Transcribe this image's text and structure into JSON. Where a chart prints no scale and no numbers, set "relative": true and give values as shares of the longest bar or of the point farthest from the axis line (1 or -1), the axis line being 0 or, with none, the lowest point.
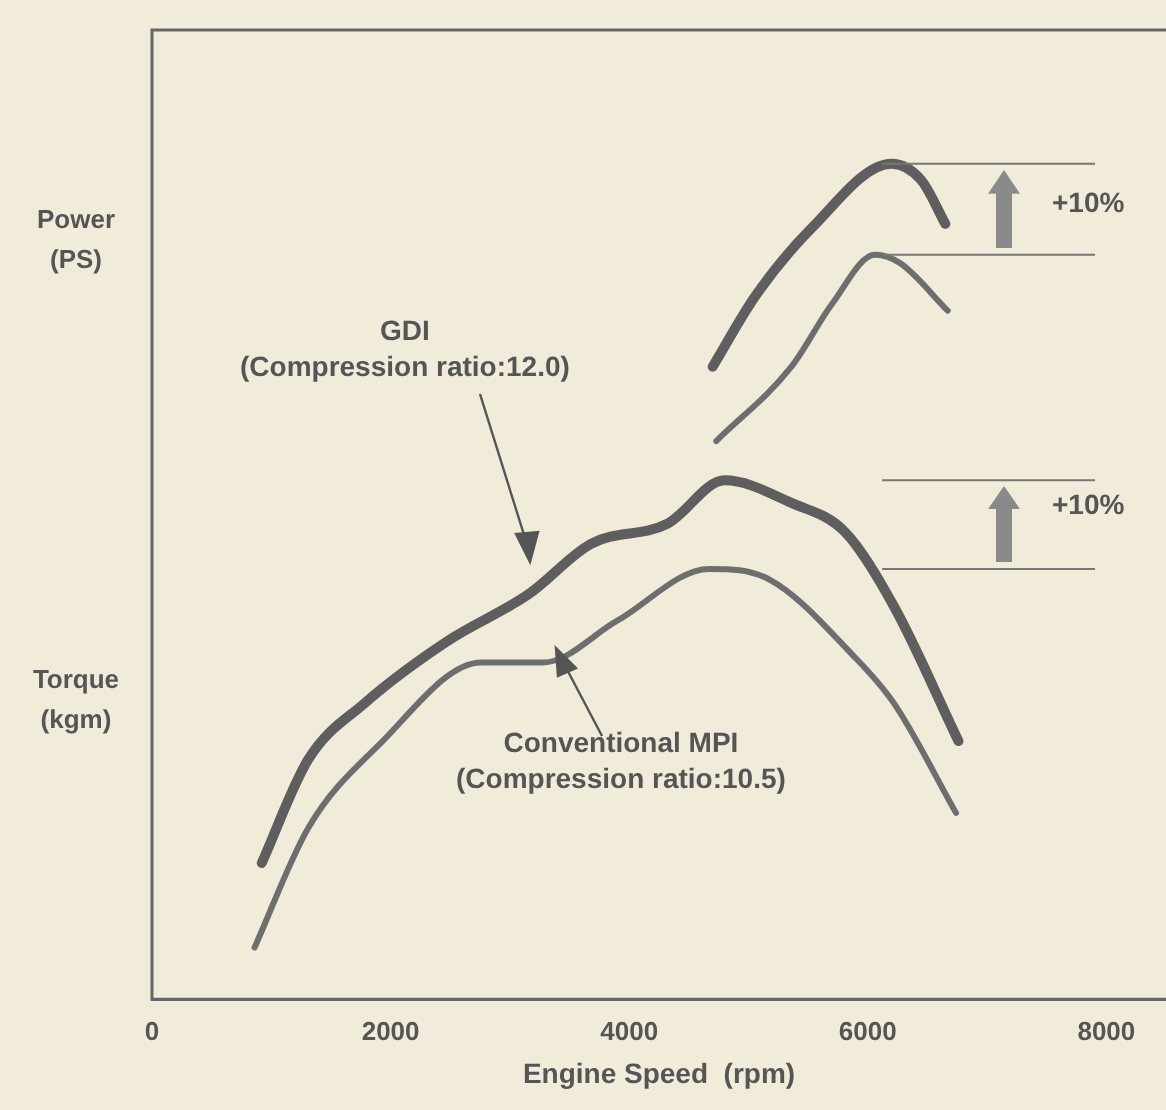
{
  "chart_data": {
    "type": "line",
    "relative": true,
    "xlabel": "Engine Speed  (rpm)",
    "ylabel": "Power (PS)",
    "xlim": [
      0,
      8500
    ],
    "xticks": [
      0,
      2000,
      4000,
      6000,
      8000
    ],
    "grid": false,
    "legend": false,
    "marker": "none",
    "line_style": "solid",
    "series": [
      {
        "color": "#5e5e5e",
        "x": [
          4700,
          5060,
          5530,
          6200,
          6450,
          6650
        ],
        "values": [
          0.757,
          0.842,
          0.923,
          1,
          0.98,
          0.928
        ]
      },
      {
        "color": "#6e6e6e",
        "x": [
          4730,
          5360,
          5700,
          6060,
          6270,
          6670
        ],
        "values": [
          0.668,
          0.757,
          0.832,
          0.891,
          0.881,
          0.824
        ]
      },
      {
        "color": "#5e5e5e",
        "x": [
          920,
          1310,
          1780,
          2470,
          3160,
          3680,
          4320,
          4800,
          5360,
          5810,
          6220,
          6760
        ],
        "values": [
          0.163,
          0.287,
          0.354,
          0.428,
          0.485,
          0.545,
          0.569,
          0.621,
          0.594,
          0.559,
          0.47,
          0.309
        ]
      },
      {
        "color": "#6e6e6e",
        "x": [
          860,
          1310,
          1900,
          2760,
          3280,
          3900,
          4670,
          5180,
          5880,
          6220,
          6740
        ],
        "values": [
          0.062,
          0.205,
          0.304,
          0.403,
          0.403,
          0.453,
          0.515,
          0.502,
          0.411,
          0.354,
          0.223
        ]
      }
    ],
    "ref_lines": [
      {
        "axis": "y",
        "value": 1
      },
      {
        "axis": "y",
        "value": 0.891
      },
      {
        "axis": "y",
        "value": 0.621
      },
      {
        "axis": "y",
        "value": 0.515
      }
    ],
    "annotations": [
      "GDI\n(Compression ratio:12.0)",
      "Conventional MPI\n(Compression ratio:10.5)",
      "+10%",
      "+10%",
      "Torque (kgm)"
    ]
  }
}
